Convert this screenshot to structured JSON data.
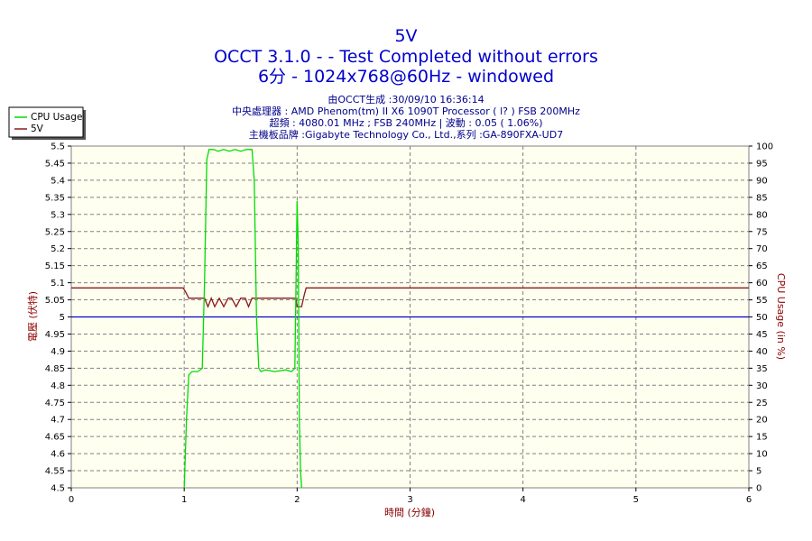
{
  "titles": {
    "main": "5V",
    "line2": "OCCT 3.1.0 -  - Test Completed without errors",
    "line3": "6分 - 1024x768@60Hz - windowed"
  },
  "info_lines": [
    "由OCCT生成 :30/09/10 16:36:14",
    "中央處理器 : AMD Phenom(tm) II X6 1090T Processor (  l? ) FSB 200MHz",
    "超頻 : 4080.01 MHz ; FSB 240MHz | 波動 : 0.05 ( 1.06%)",
    "主機板品牌 :Gigabyte Technology Co., Ltd.,系列 :GA-890FXA-UD7"
  ],
  "colors": {
    "title": "#0000cc",
    "info": "#00008b",
    "axis_label": "#8b0000",
    "cpu_series": "#00dd00",
    "v5_series": "#8b1a1a",
    "reference": "#0000cc",
    "grid": "#808080",
    "plot_bg": "#fffff0"
  },
  "chart_data": {
    "type": "line",
    "xlabel": "時間 (分鐘)",
    "ylabel_left": "電壓 (伏特)",
    "ylabel_right": "CPU Usage (in %)",
    "xlim": [
      0,
      6
    ],
    "ylim_left": [
      4.5,
      5.5
    ],
    "ylim_right": [
      0,
      100
    ],
    "x_ticks": [
      "0",
      "1",
      "2",
      "3",
      "4",
      "5",
      "6"
    ],
    "y_ticks_left": [
      "4.5",
      "4.55",
      "4.6",
      "4.65",
      "4.7",
      "4.75",
      "4.8",
      "4.85",
      "4.9",
      "4.95",
      "5",
      "5.05",
      "5.1",
      "5.15",
      "5.2",
      "5.25",
      "5.3",
      "5.35",
      "5.4",
      "5.45",
      "5.5"
    ],
    "y_ticks_right": [
      "0",
      "5",
      "10",
      "15",
      "20",
      "25",
      "30",
      "35",
      "40",
      "45",
      "50",
      "55",
      "60",
      "65",
      "70",
      "75",
      "80",
      "85",
      "90",
      "95",
      "100"
    ],
    "grid": true,
    "legend_position": "top-left",
    "reference_line": 5.0,
    "series": [
      {
        "name": "CPU Usage",
        "axis": "right",
        "x": [
          1.0,
          1.02,
          1.04,
          1.07,
          1.12,
          1.16,
          1.18,
          1.2,
          1.22,
          1.26,
          1.3,
          1.35,
          1.4,
          1.45,
          1.5,
          1.55,
          1.6,
          1.62,
          1.64,
          1.66,
          1.68,
          1.72,
          1.8,
          1.9,
          1.95,
          1.98,
          1.99,
          2.0,
          2.01,
          2.02,
          2.03,
          2.04,
          2.045
        ],
        "y": [
          0,
          20,
          33,
          34,
          34,
          35,
          60,
          96,
          99,
          99,
          98.5,
          99,
          98.5,
          99,
          98.5,
          99,
          99,
          90,
          50,
          35,
          34,
          34.5,
          34,
          34.5,
          34,
          35,
          60,
          84,
          70,
          20,
          5,
          0,
          0
        ]
      },
      {
        "name": "5V",
        "axis": "left",
        "x": [
          0,
          0.99,
          1.01,
          1.04,
          1.08,
          1.12,
          1.18,
          1.21,
          1.24,
          1.27,
          1.31,
          1.35,
          1.39,
          1.42,
          1.46,
          1.5,
          1.54,
          1.57,
          1.6,
          1.63,
          1.7,
          1.8,
          1.9,
          1.99,
          2.0,
          2.02,
          2.04,
          2.06,
          2.08,
          2.1,
          6.0
        ],
        "y": [
          5.085,
          5.085,
          5.075,
          5.055,
          5.055,
          5.055,
          5.055,
          5.03,
          5.055,
          5.03,
          5.055,
          5.03,
          5.055,
          5.055,
          5.03,
          5.055,
          5.055,
          5.03,
          5.055,
          5.055,
          5.055,
          5.055,
          5.055,
          5.055,
          5.03,
          5.03,
          5.03,
          5.06,
          5.085,
          5.085,
          5.085
        ]
      }
    ]
  }
}
